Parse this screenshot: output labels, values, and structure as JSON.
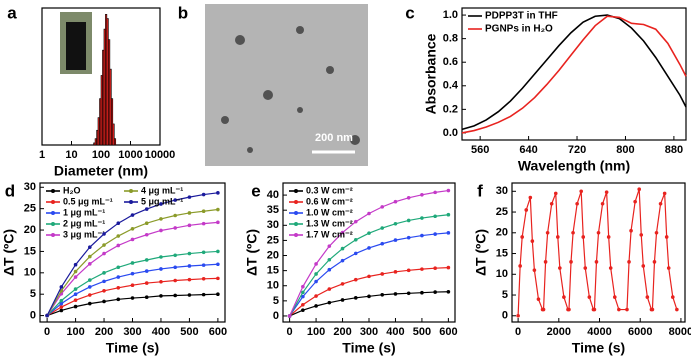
{
  "chart_data": [
    {
      "type": "histogram",
      "panel_label": "a",
      "x_label": "Diameter (nm)",
      "xscale": "log",
      "xlim": [
        1,
        10000
      ],
      "xticks": [
        1,
        10,
        100,
        1000,
        10000
      ],
      "bins": [
        56,
        63,
        71,
        79,
        89,
        100,
        112,
        126,
        141,
        158,
        178,
        200,
        224,
        251,
        282,
        316
      ],
      "values": [
        1,
        3,
        7,
        13,
        22,
        33,
        45,
        55,
        62,
        60,
        50,
        36,
        22,
        10,
        3
      ],
      "ylim": [
        0,
        65
      ],
      "color": "#e8231f"
    },
    {
      "type": "image",
      "panel_label": "b",
      "scale_bar": "200 nm"
    },
    {
      "type": "line",
      "panel_label": "c",
      "x_label": "Wavelength (nm)",
      "y_label": "Absorbance",
      "legend": "upper left",
      "xlim": [
        530,
        900
      ],
      "xticks": [
        560,
        640,
        720,
        800,
        880
      ],
      "ylim": [
        -0.06,
        1.06
      ],
      "yticks": [
        {
          "value": 0,
          "label": "0.0"
        },
        {
          "value": 0.2,
          "label": "0.2"
        },
        {
          "value": 0.4,
          "label": "0.4"
        },
        {
          "value": 0.6,
          "label": "0.6"
        },
        {
          "value": 0.8,
          "label": "0.8"
        },
        {
          "value": 1,
          "label": "1.0"
        }
      ],
      "x": [
        530,
        550,
        570,
        590,
        610,
        630,
        650,
        670,
        690,
        710,
        730,
        750,
        770,
        790,
        810,
        830,
        850,
        870,
        890,
        900
      ],
      "series": [
        {
          "name": "PDPP3T in THF",
          "color": "#000000",
          "values": [
            0.03,
            0.06,
            0.11,
            0.18,
            0.27,
            0.38,
            0.5,
            0.62,
            0.74,
            0.85,
            0.94,
            0.99,
            1.0,
            0.97,
            0.89,
            0.78,
            0.64,
            0.48,
            0.32,
            0.22
          ]
        },
        {
          "name": "PGNPs in H₂O",
          "color": "#e8231f",
          "values": [
            0.0,
            0.02,
            0.05,
            0.09,
            0.14,
            0.21,
            0.3,
            0.41,
            0.53,
            0.66,
            0.79,
            0.91,
            0.99,
            0.98,
            0.93,
            0.92,
            0.88,
            0.76,
            0.58,
            0.48
          ]
        }
      ]
    },
    {
      "type": "line",
      "panel_label": "d",
      "x_label": "Time (s)",
      "y_label": "ΔT (ºC)",
      "legend": "upper left",
      "xlim": [
        -25,
        625
      ],
      "xticks": [
        0,
        100,
        200,
        300,
        400,
        500,
        600
      ],
      "ylim": [
        -1.5,
        31
      ],
      "yticks": [
        0,
        5,
        10,
        15,
        20,
        25,
        30
      ],
      "x": [
        0,
        50,
        100,
        150,
        200,
        250,
        300,
        350,
        400,
        450,
        500,
        550,
        600
      ],
      "series": [
        {
          "name": "H₂O",
          "color": "#000000",
          "values": [
            0,
            1.2,
            2.1,
            2.8,
            3.3,
            3.8,
            4.1,
            4.3,
            4.6,
            4.7,
            4.8,
            4.9,
            5.0
          ]
        },
        {
          "name": "0.5 μg mL⁻¹",
          "color": "#e8231f",
          "values": [
            0,
            2.0,
            3.6,
            4.8,
            5.8,
            6.5,
            7.1,
            7.6,
            7.9,
            8.2,
            8.4,
            8.6,
            8.7
          ]
        },
        {
          "name": "1 μg mL⁻¹",
          "color": "#2a4af0",
          "values": [
            0,
            2.8,
            5.0,
            6.7,
            8.0,
            9.0,
            9.8,
            10.4,
            10.9,
            11.3,
            11.6,
            11.8,
            12.0
          ]
        },
        {
          "name": "2 μg mL⁻¹",
          "color": "#1fa97a",
          "values": [
            0,
            3.5,
            6.2,
            8.3,
            10.0,
            11.3,
            12.3,
            13.0,
            13.7,
            14.1,
            14.5,
            14.8,
            15.0
          ]
        },
        {
          "name": "3 μg mL⁻¹",
          "color": "#c43ac8",
          "values": [
            0,
            5.1,
            9.0,
            12.1,
            14.5,
            16.4,
            17.8,
            18.9,
            19.9,
            20.5,
            21.1,
            21.5,
            21.8
          ]
        },
        {
          "name": "4 μg mL⁻¹",
          "color": "#8b9b2a",
          "values": [
            0,
            5.8,
            10.3,
            13.8,
            16.5,
            18.6,
            20.3,
            21.6,
            22.6,
            23.4,
            24.0,
            24.4,
            24.8
          ]
        },
        {
          "name": "5 μg mL⁻¹",
          "color": "#1a1a9c",
          "values": [
            0,
            6.7,
            11.9,
            16.0,
            19.1,
            21.6,
            23.5,
            24.9,
            26.1,
            27.0,
            27.7,
            28.3,
            28.7
          ]
        }
      ]
    },
    {
      "type": "line",
      "panel_label": "e",
      "x_label": "Time (s)",
      "y_label": "ΔT (ºC)",
      "legend": "upper left",
      "xlim": [
        -25,
        625
      ],
      "xticks": [
        0,
        100,
        200,
        300,
        400,
        500,
        600
      ],
      "ylim": [
        -2,
        44
      ],
      "yticks": [
        0,
        5,
        10,
        15,
        20,
        25,
        30,
        35,
        40
      ],
      "x": [
        0,
        50,
        100,
        150,
        200,
        250,
        300,
        350,
        400,
        450,
        500,
        550,
        600
      ],
      "series": [
        {
          "name": "0.3 W cm⁻²",
          "color": "#000000",
          "values": [
            0,
            1.9,
            3.3,
            4.4,
            5.3,
            6.0,
            6.5,
            7.0,
            7.3,
            7.5,
            7.7,
            7.9,
            8.0
          ]
        },
        {
          "name": "0.6 W cm⁻²",
          "color": "#e8231f",
          "values": [
            0,
            3.7,
            6.6,
            8.9,
            10.6,
            12.0,
            13.1,
            13.9,
            14.6,
            15.1,
            15.5,
            15.8,
            16.0
          ]
        },
        {
          "name": "1.0 W cm⁻²",
          "color": "#2a4af0",
          "values": [
            0,
            6.4,
            11.4,
            15.3,
            18.3,
            20.7,
            22.5,
            23.9,
            25.1,
            25.9,
            26.6,
            27.1,
            27.5
          ]
        },
        {
          "name": "1.3 W cm⁻²",
          "color": "#1fa97a",
          "values": [
            0,
            7.8,
            13.9,
            18.6,
            22.3,
            25.2,
            27.4,
            29.1,
            30.5,
            31.6,
            32.4,
            33.0,
            33.5
          ]
        },
        {
          "name": "1.7 W cm⁻²",
          "color": "#c43ac8",
          "values": [
            0,
            9.7,
            17.2,
            23.1,
            27.6,
            31.2,
            33.9,
            36.1,
            37.8,
            39.1,
            40.1,
            40.9,
            41.5
          ]
        }
      ]
    },
    {
      "type": "line",
      "panel_label": "f",
      "x_label": "Time (s)",
      "y_label": "ΔT (ºC)",
      "xlim": [
        -300,
        8200
      ],
      "xticks": [
        0,
        2000,
        4000,
        6000,
        8000
      ],
      "ylim": [
        -1.5,
        32
      ],
      "yticks": [
        0,
        5,
        10,
        15,
        20,
        25,
        30
      ],
      "x": [
        0,
        100,
        200,
        400,
        600,
        700,
        800,
        1000,
        1200,
        1250,
        1350,
        1450,
        1650,
        1850,
        1950,
        2050,
        2250,
        2450,
        2500,
        2600,
        2700,
        2900,
        3100,
        3200,
        3300,
        3500,
        3700,
        3750,
        3850,
        3950,
        4150,
        4350,
        4450,
        4550,
        4750,
        4950,
        5350,
        5450,
        5550,
        5750,
        5950,
        6050,
        6150,
        6350,
        6550,
        6600,
        6700,
        6800,
        7000,
        7200,
        7300,
        7400,
        7600,
        7800
      ],
      "series": [
        {
          "color": "#e8231f",
          "values": [
            0,
            12,
            19,
            25.5,
            28.5,
            18,
            11,
            4,
            1.5,
            1.5,
            13,
            20,
            27,
            29.5,
            19,
            11.5,
            4.5,
            1.5,
            1.5,
            13,
            20,
            27,
            30,
            19,
            11.5,
            4.5,
            1.5,
            1.5,
            13,
            20,
            27,
            29.8,
            19,
            11.5,
            4.5,
            1.5,
            1.5,
            13,
            20.5,
            27.5,
            30.5,
            19.5,
            12,
            4.5,
            1.5,
            1.5,
            13,
            20,
            27,
            29.5,
            19,
            11.5,
            4.5,
            1.5
          ]
        }
      ]
    }
  ]
}
